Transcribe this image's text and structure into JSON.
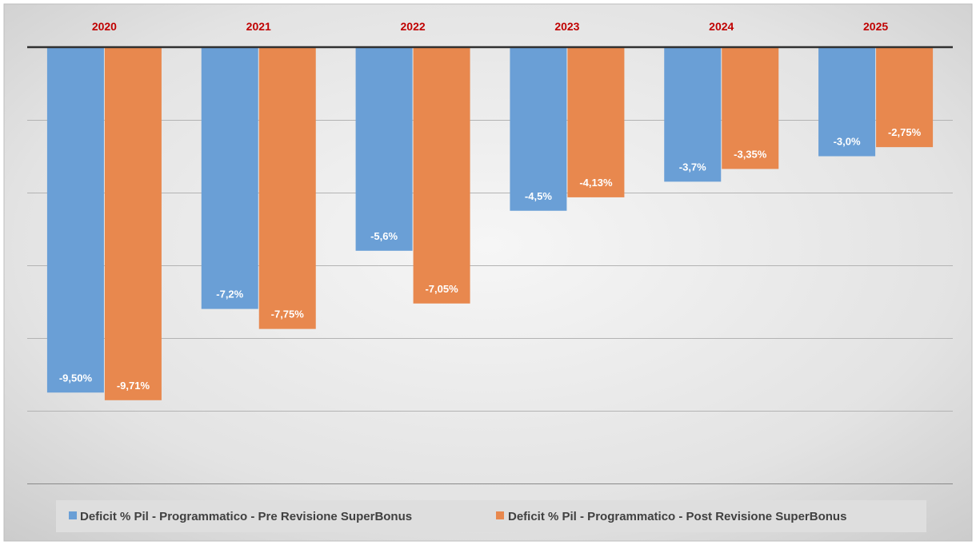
{
  "chart_data": {
    "type": "bar",
    "title": "",
    "xlabel": "",
    "ylabel": "",
    "ylim": [
      -12,
      0
    ],
    "grid": true,
    "legend_position": "bottom",
    "categories": [
      "2020",
      "2021",
      "2022",
      "2023",
      "2024",
      "2025"
    ],
    "series": [
      {
        "name": "Deficit % Pil - Programmatico - Pre Revisione SuperBonus",
        "color": "#6a9fd6",
        "values": [
          -9.5,
          -7.2,
          -5.6,
          -4.5,
          -3.7,
          -3.0
        ],
        "labels": [
          "-9,50%",
          "-7,2%",
          "-5,6%",
          "-4,5%",
          "-3,7%",
          "-3,0%"
        ]
      },
      {
        "name": "Deficit % Pil - Programmatico - Post Revisione SuperBonus",
        "color": "#e8884e",
        "values": [
          -9.71,
          -7.75,
          -7.05,
          -4.13,
          -3.35,
          -2.75
        ],
        "labels": [
          "-9,71%",
          "-7,75%",
          "-7,05%",
          "-4,13%",
          "-3,35%",
          "-2,75%"
        ]
      }
    ]
  }
}
